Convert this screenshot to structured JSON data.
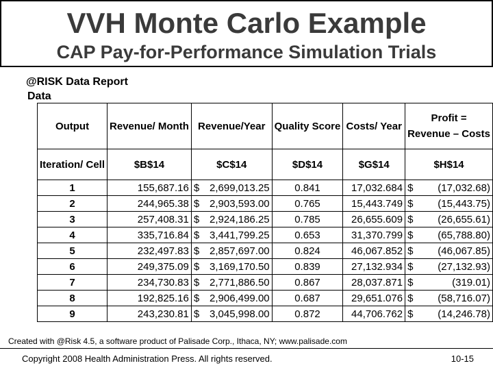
{
  "slide": {
    "title": "VVH Monte Carlo Example",
    "subtitle": "CAP Pay-for-Performance Simulation Trials"
  },
  "report": {
    "title": "@RISK Data Report",
    "subtitle": "Data",
    "header_row_1": {
      "c0": "Output",
      "c1": "Revenue/ Month",
      "c2": "Revenue/Year",
      "c3": "Quality Score",
      "c4": "Costs/ Year",
      "c5_top": "Profit =",
      "c5_bottom": "Revenue – Costs"
    },
    "header_row_2": {
      "c0": "Iteration/ Cell",
      "c1": "$B$14",
      "c2": "$C$14",
      "c3": "$D$14",
      "c4": "$G$14",
      "c5": "$H$14"
    },
    "rows": [
      {
        "iteration": "1",
        "revenue_month": "155,687.16",
        "revenue_year": "2,699,013.25",
        "quality": "0.841",
        "costs": "17,032.684",
        "profit": "(17,032.68)"
      },
      {
        "iteration": "2",
        "revenue_month": "244,965.38",
        "revenue_year": "2,903,593.00",
        "quality": "0.765",
        "costs": "15,443.749",
        "profit": "(15,443.75)"
      },
      {
        "iteration": "3",
        "revenue_month": "257,408.31",
        "revenue_year": "2,924,186.25",
        "quality": "0.785",
        "costs": "26,655.609",
        "profit": "(26,655.61)"
      },
      {
        "iteration": "4",
        "revenue_month": "335,716.84",
        "revenue_year": "3,441,799.25",
        "quality": "0.653",
        "costs": "31,370.799",
        "profit": "(65,788.80)"
      },
      {
        "iteration": "5",
        "revenue_month": "232,497.83",
        "revenue_year": "2,857,697.00",
        "quality": "0.824",
        "costs": "46,067.852",
        "profit": "(46,067.85)"
      },
      {
        "iteration": "6",
        "revenue_month": "249,375.09",
        "revenue_year": "3,169,170.50",
        "quality": "0.839",
        "costs": "27,132.934",
        "profit": "(27,132.93)"
      },
      {
        "iteration": "7",
        "revenue_month": "234,730.83",
        "revenue_year": "2,771,886.50",
        "quality": "0.867",
        "costs": "28,037.871",
        "profit": "(319.01)"
      },
      {
        "iteration": "8",
        "revenue_month": "192,825.16",
        "revenue_year": "2,906,499.00",
        "quality": "0.687",
        "costs": "29,651.076",
        "profit": "(58,716.07)"
      },
      {
        "iteration": "9",
        "revenue_month": "243,230.81",
        "revenue_year": "3,045,998.00",
        "quality": "0.872",
        "costs": "44,706.762",
        "profit": "(14,246.78)"
      }
    ],
    "currency_symbol": "$"
  },
  "footer": {
    "note": "Created with @Risk 4.5, a software product of Palisade Corp., Ithaca, NY; www.palisade.com",
    "copyright": "Copyright 2008 Health Administration Press. All rights reserved.",
    "slide_number": "10-15"
  }
}
